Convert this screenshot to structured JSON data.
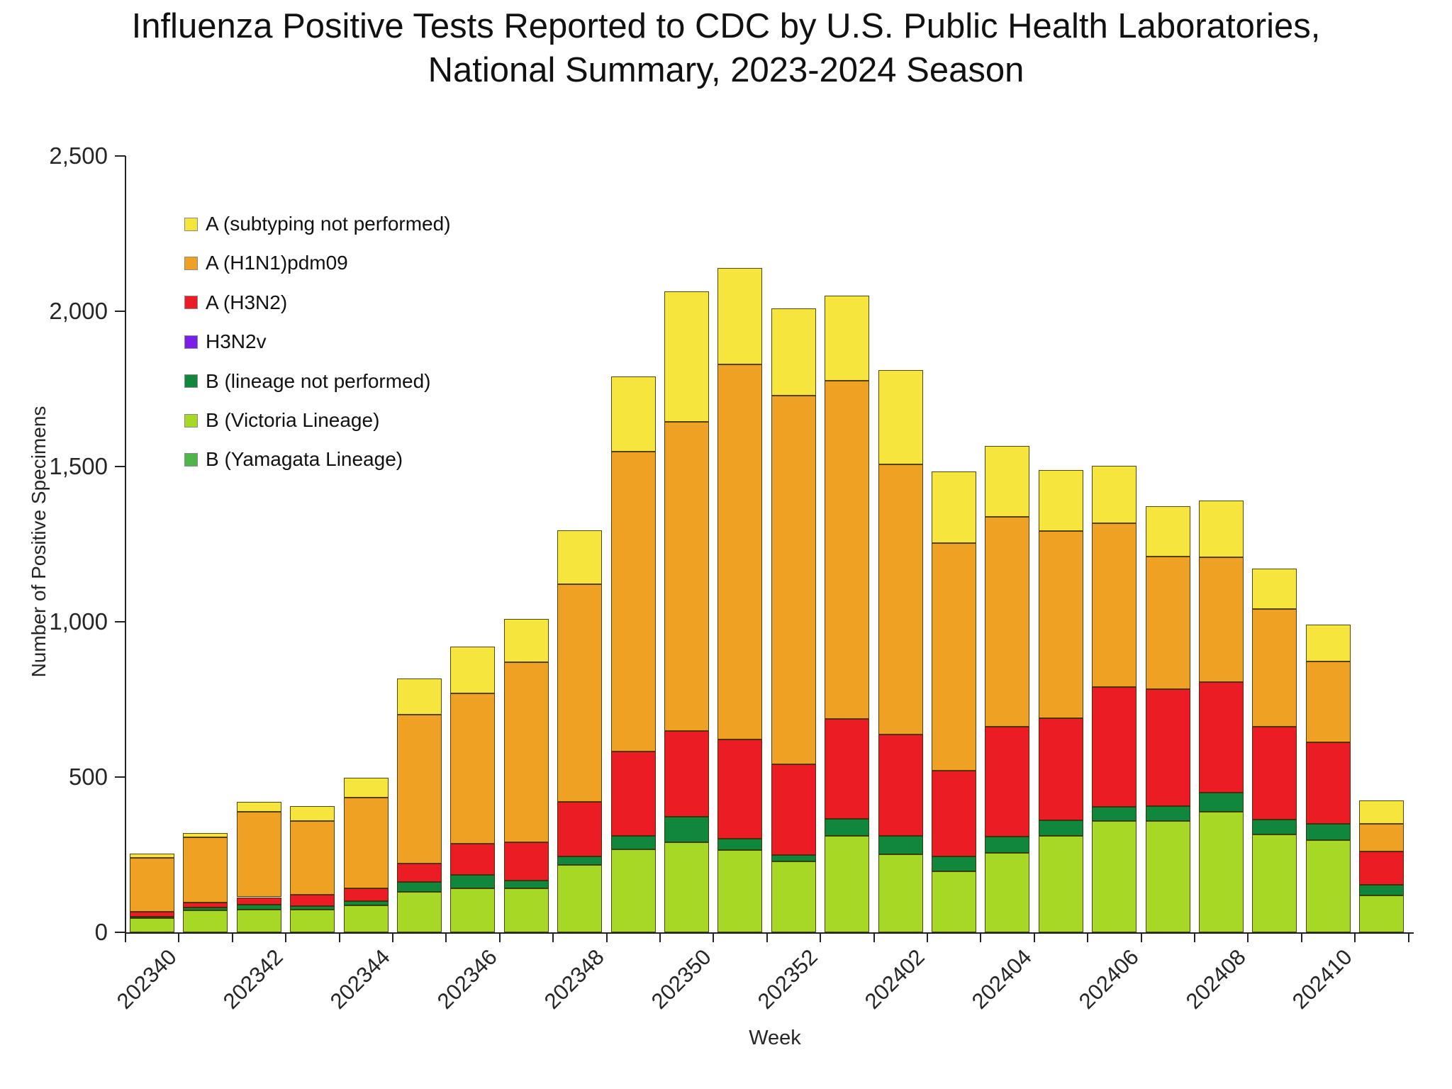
{
  "title": {
    "line1": "Influenza Positive Tests Reported to CDC by U.S. Public Health Laboratories,",
    "line2": "National Summary, 2023-2024 Season"
  },
  "chart_data": {
    "type": "bar",
    "stacked": true,
    "title": "Influenza Positive Tests Reported to CDC by U.S. Public Health Laboratories, National Summary, 2023-2024 Season",
    "xlabel": "Week",
    "ylabel": "Number of Positive Specimens",
    "ylim": [
      0,
      2500
    ],
    "grid": false,
    "legend_position": "upper-left-inside",
    "yticks": [
      {
        "value": 0,
        "label": "0"
      },
      {
        "value": 500,
        "label": "500"
      },
      {
        "value": 1000,
        "label": "1,000"
      },
      {
        "value": 1500,
        "label": "1,500"
      },
      {
        "value": 2000,
        "label": "2,000"
      },
      {
        "value": 2500,
        "label": "2,500"
      }
    ],
    "categories": [
      "202340",
      "202341",
      "202342",
      "202343",
      "202344",
      "202345",
      "202346",
      "202347",
      "202348",
      "202349",
      "202350",
      "202351",
      "202352",
      "202401",
      "202402",
      "202403",
      "202404",
      "202405",
      "202406",
      "202407",
      "202408",
      "202409",
      "202410",
      "202411"
    ],
    "xtick_label_indices": [
      0,
      2,
      4,
      6,
      8,
      10,
      12,
      14,
      16,
      18,
      20,
      22
    ],
    "stack_order_bottom_to_top": [
      "B (Yamagata Lineage)",
      "B (Victoria Lineage)",
      "B (lineage not performed)",
      "H3N2v",
      "A (H3N2)",
      "A (H1N1)pdm09",
      "A (subtyping not performed)"
    ],
    "series": [
      {
        "name": "A (subtyping not performed)",
        "color": "#F5E53C",
        "values": [
          15,
          14,
          33,
          48,
          64,
          117,
          151,
          139,
          173,
          243,
          421,
          311,
          279,
          274,
          304,
          229,
          229,
          196,
          184,
          161,
          183,
          130,
          117,
          75
        ]
      },
      {
        "name": "A (H1N1)pdm09",
        "color": "#EFA124",
        "values": [
          173,
          210,
          274,
          238,
          292,
          478,
          485,
          580,
          702,
          966,
          994,
          1208,
          1189,
          1089,
          869,
          733,
          676,
          603,
          529,
          429,
          403,
          379,
          260,
          88
        ]
      },
      {
        "name": "A (H3N2)",
        "color": "#EB1C24",
        "values": [
          15,
          17,
          25,
          36,
          41,
          61,
          101,
          123,
          175,
          271,
          277,
          320,
          291,
          323,
          326,
          277,
          353,
          329,
          384,
          375,
          355,
          300,
          264,
          108
        ]
      },
      {
        "name": "H3N2v",
        "color": "#7B1EE8",
        "values": [
          0,
          0,
          0,
          0,
          0,
          0,
          0,
          0,
          0,
          0,
          0,
          0,
          0,
          0,
          0,
          0,
          0,
          0,
          0,
          0,
          0,
          0,
          0,
          0
        ]
      },
      {
        "name": "B (lineage not performed)",
        "color": "#10873D",
        "values": [
          5,
          8,
          14,
          11,
          14,
          30,
          42,
          25,
          28,
          43,
          81,
          36,
          21,
          55,
          59,
          47,
          52,
          49,
          47,
          49,
          61,
          47,
          53,
          35
        ]
      },
      {
        "name": "B (Victoria Lineage)",
        "color": "#A8D826",
        "values": [
          46,
          71,
          74,
          73,
          87,
          131,
          142,
          141,
          216,
          268,
          291,
          265,
          228,
          310,
          252,
          197,
          256,
          311,
          358,
          358,
          389,
          316,
          296,
          118
        ]
      },
      {
        "name": "B (Yamagata Lineage)",
        "color": "#4EB748",
        "values": [
          0,
          0,
          0,
          0,
          0,
          0,
          0,
          0,
          0,
          0,
          0,
          0,
          0,
          0,
          0,
          0,
          0,
          0,
          0,
          0,
          0,
          0,
          0,
          0
        ]
      }
    ]
  }
}
